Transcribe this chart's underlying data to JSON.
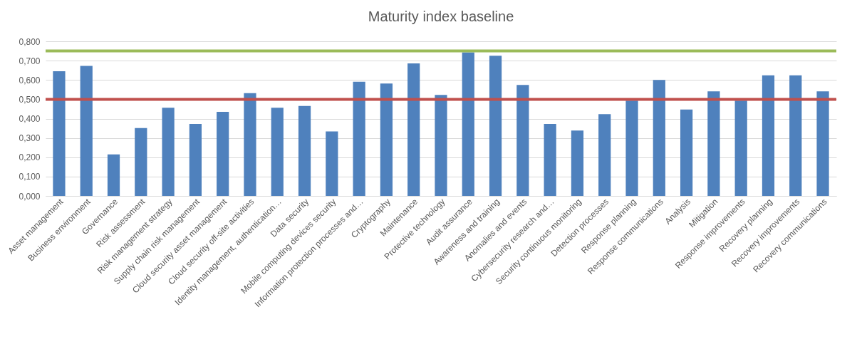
{
  "chart_data": {
    "type": "bar",
    "title": "Maturity index baseline",
    "categories": [
      "Asset management",
      "Business environment",
      "Governance",
      "Risk assessment",
      "Risk management strategy",
      "Supply chain risk management",
      "Cloud security asset management",
      "Cloud security off-site activities",
      "Identity management, authentication…",
      "Data security",
      "Mobile computing devices security",
      "Information protection processes and…",
      "Cryptography",
      "Maintenance",
      "Protective technology",
      "Audit assurance",
      "Awareness and training",
      "Anomalies and events",
      "Cybersecurity research and…",
      "Security continuous monitoring",
      "Detection processes",
      "Response planning",
      "Response communications",
      "Analysis",
      "Mitigation",
      "Response improvements",
      "Recovery planning",
      "Recovery improvements",
      "Recovery communications"
    ],
    "values": [
      0.645,
      0.673,
      0.215,
      0.351,
      0.456,
      0.372,
      0.435,
      0.532,
      0.456,
      0.465,
      0.334,
      0.591,
      0.582,
      0.686,
      0.523,
      0.743,
      0.725,
      0.574,
      0.372,
      0.338,
      0.423,
      0.493,
      0.6,
      0.447,
      0.541,
      0.493,
      0.624,
      0.624,
      0.541
    ],
    "color": "#4f81bd",
    "ylim": [
      0,
      0.8
    ],
    "yticks": [
      {
        "value": 0,
        "label": "0,000"
      },
      {
        "value": 0.1,
        "label": "0,100"
      },
      {
        "value": 0.2,
        "label": "0,200"
      },
      {
        "value": 0.3,
        "label": "0,300"
      },
      {
        "value": 0.4,
        "label": "0,400"
      },
      {
        "value": 0.5,
        "label": "0,500"
      },
      {
        "value": 0.6,
        "label": "0,600"
      },
      {
        "value": 0.7,
        "label": "0,700"
      },
      {
        "value": 0.8,
        "label": "0,800"
      }
    ],
    "grid": "y",
    "ref_lines": [
      {
        "axis": "y",
        "value": 0.75,
        "color": "#9bbb59"
      },
      {
        "axis": "y",
        "value": 0.5,
        "color": "#c0504d"
      }
    ]
  }
}
